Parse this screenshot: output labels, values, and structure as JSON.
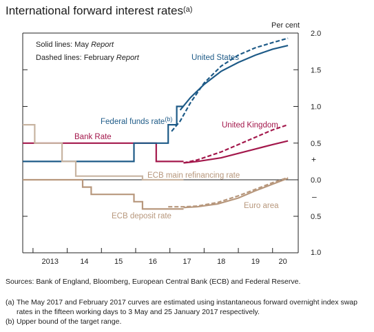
{
  "title": "International forward interest rates",
  "title_note": "(a)",
  "chart_data": {
    "type": "line",
    "unit": "Per cent",
    "x_ticks": [
      "2013",
      "14",
      "15",
      "16",
      "17",
      "18",
      "19",
      "20"
    ],
    "xlim": [
      2012.7,
      2020.75
    ],
    "upper_panel": {
      "ticks": [
        "2.0",
        "1.5",
        "1.0",
        "0.5"
      ],
      "ylim": [
        0,
        2.0
      ],
      "sign": "+"
    },
    "lower_panel": {
      "ticks": [
        "0.5",
        "1.0"
      ],
      "sign": "–"
    },
    "zero_label": "0.0",
    "legend_notes": [
      {
        "text": "Solid lines: May ",
        "italic": "Report"
      },
      {
        "text": "Dashed lines: February ",
        "italic": "Report"
      }
    ],
    "series": [
      {
        "name": "Bank Rate",
        "key": "bank_rate",
        "color": "#a3174b",
        "style": "solid",
        "points": [
          [
            2012.7,
            0.5
          ],
          [
            2016.6,
            0.5
          ],
          [
            2016.6,
            0.25
          ],
          [
            2017.4,
            0.25
          ]
        ]
      },
      {
        "name": "Federal funds rate",
        "key": "fed_funds",
        "note": "(b)",
        "color": "#1d5a87",
        "style": "solid",
        "points": [
          [
            2012.7,
            0.25
          ],
          [
            2015.95,
            0.25
          ],
          [
            2015.95,
            0.5
          ],
          [
            2016.95,
            0.5
          ],
          [
            2016.95,
            0.75
          ],
          [
            2017.2,
            0.75
          ],
          [
            2017.2,
            1.0
          ],
          [
            2017.4,
            1.0
          ]
        ]
      },
      {
        "name": "ECB main refinancing rate",
        "key": "ecb_mro",
        "color": "#c8b4a1",
        "style": "solid",
        "points": [
          [
            2012.7,
            0.75
          ],
          [
            2013.05,
            0.75
          ],
          [
            2013.05,
            0.5
          ],
          [
            2013.85,
            0.5
          ],
          [
            2013.85,
            0.25
          ],
          [
            2014.25,
            0.25
          ],
          [
            2014.25,
            0.05
          ],
          [
            2016.2,
            0.05
          ],
          [
            2016.2,
            0.0
          ],
          [
            2017.4,
            0.0
          ]
        ]
      },
      {
        "name": "ECB deposit rate",
        "key": "ecb_deposit",
        "color": "#b7977c",
        "style": "solid",
        "points": [
          [
            2012.7,
            0.0
          ],
          [
            2014.45,
            0.0
          ],
          [
            2014.45,
            -0.1
          ],
          [
            2014.7,
            -0.1
          ],
          [
            2014.7,
            -0.2
          ],
          [
            2015.95,
            -0.2
          ],
          [
            2015.95,
            -0.3
          ],
          [
            2016.2,
            -0.3
          ],
          [
            2016.2,
            -0.4
          ],
          [
            2017.4,
            -0.4
          ]
        ]
      },
      {
        "name": "United States",
        "key": "us_may",
        "color": "#1d5a87",
        "style": "solid",
        "points": [
          [
            2017.3,
            0.95
          ],
          [
            2017.6,
            1.12
          ],
          [
            2018.0,
            1.3
          ],
          [
            2018.5,
            1.48
          ],
          [
            2019.0,
            1.6
          ],
          [
            2019.5,
            1.7
          ],
          [
            2020.0,
            1.78
          ],
          [
            2020.45,
            1.83
          ]
        ]
      },
      {
        "name": "United States",
        "key": "us_feb",
        "color": "#1d5a87",
        "style": "dashed",
        "points": [
          [
            2017.05,
            0.66
          ],
          [
            2017.3,
            0.8
          ],
          [
            2017.6,
            1.05
          ],
          [
            2018.0,
            1.32
          ],
          [
            2018.5,
            1.55
          ],
          [
            2019.0,
            1.7
          ],
          [
            2019.5,
            1.8
          ],
          [
            2020.0,
            1.87
          ],
          [
            2020.45,
            1.93
          ]
        ]
      },
      {
        "name": "United Kingdom",
        "key": "uk_may",
        "color": "#a3174b",
        "style": "solid",
        "points": [
          [
            2017.4,
            0.23
          ],
          [
            2017.8,
            0.25
          ],
          [
            2018.5,
            0.3
          ],
          [
            2019.0,
            0.36
          ],
          [
            2019.5,
            0.42
          ],
          [
            2020.0,
            0.48
          ],
          [
            2020.45,
            0.53
          ]
        ]
      },
      {
        "name": "United Kingdom",
        "key": "uk_feb",
        "color": "#a3174b",
        "style": "dashed",
        "points": [
          [
            2017.4,
            0.23
          ],
          [
            2017.8,
            0.27
          ],
          [
            2018.5,
            0.38
          ],
          [
            2019.0,
            0.48
          ],
          [
            2019.5,
            0.58
          ],
          [
            2020.0,
            0.68
          ],
          [
            2020.45,
            0.75
          ]
        ]
      },
      {
        "name": "Euro area",
        "key": "euro_may",
        "color": "#b7977c",
        "style": "solid",
        "points": [
          [
            2017.4,
            -0.38
          ],
          [
            2017.8,
            -0.37
          ],
          [
            2018.4,
            -0.33
          ],
          [
            2019.0,
            -0.25
          ],
          [
            2019.5,
            -0.15
          ],
          [
            2020.0,
            -0.06
          ],
          [
            2020.45,
            0.02
          ]
        ]
      },
      {
        "name": "Euro area",
        "key": "euro_feb",
        "color": "#b7977c",
        "style": "dashed",
        "points": [
          [
            2016.95,
            -0.37
          ],
          [
            2017.4,
            -0.37
          ],
          [
            2017.8,
            -0.36
          ],
          [
            2018.4,
            -0.31
          ],
          [
            2019.0,
            -0.22
          ],
          [
            2019.5,
            -0.13
          ],
          [
            2020.0,
            -0.04
          ],
          [
            2020.45,
            0.03
          ]
        ]
      }
    ],
    "labels": {
      "bank_rate": "Bank Rate",
      "fed_funds": "Federal funds rate",
      "fed_funds_note": "(b)",
      "ecb_mro": "ECB main refinancing rate",
      "ecb_deposit": "ECB deposit rate",
      "united_states": "United States",
      "united_kingdom": "United Kingdom",
      "euro_area": "Euro area"
    }
  },
  "sources": "Sources: Bank of England, Bloomberg, European Central Bank (ECB) and Federal Reserve.",
  "notes": [
    {
      "tag": "(a)",
      "text": "The May 2017 and February 2017 curves are estimated using instantaneous forward overnight index swap rates in the fifteen working days to 3 May and 25 January 2017 respectively."
    },
    {
      "tag": "(b)",
      "text": "Upper bound of the target range."
    }
  ]
}
